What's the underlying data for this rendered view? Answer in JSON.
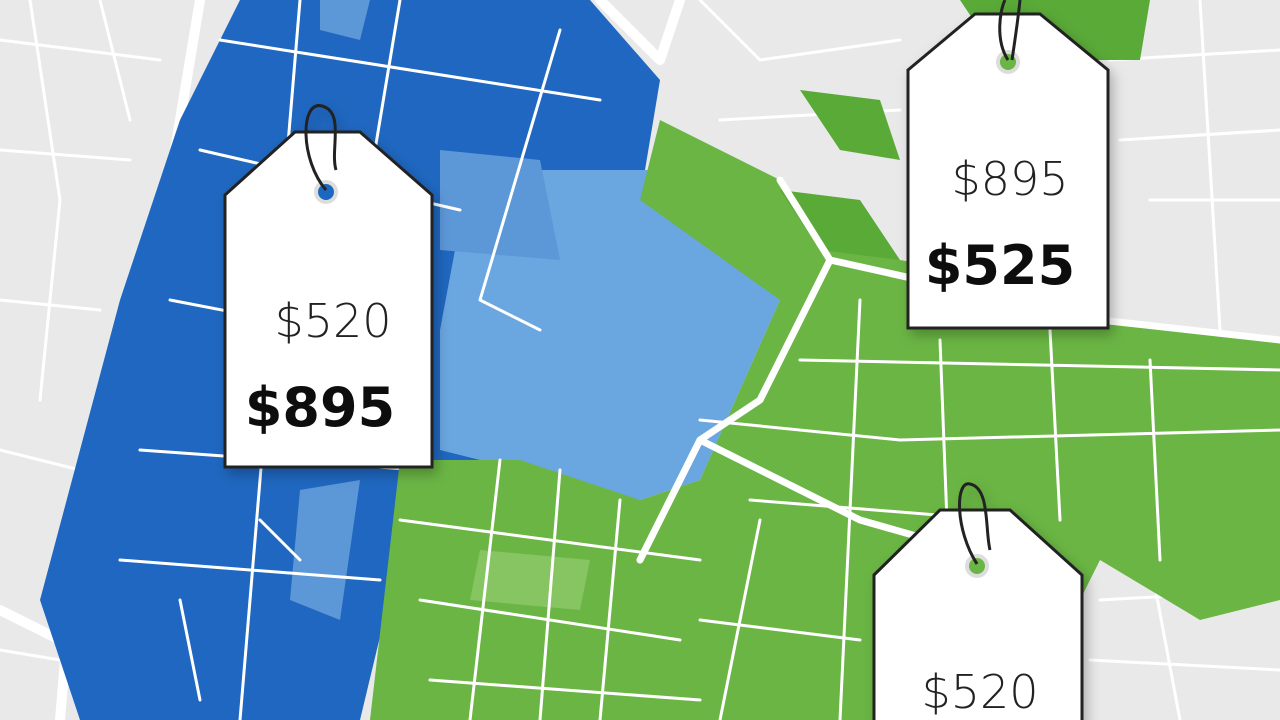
{
  "tags": [
    {
      "old_price": "$520",
      "new_price": "$895"
    },
    {
      "old_price": "$895",
      "new_price": "$525"
    },
    {
      "old_price": "$520"
    }
  ]
}
